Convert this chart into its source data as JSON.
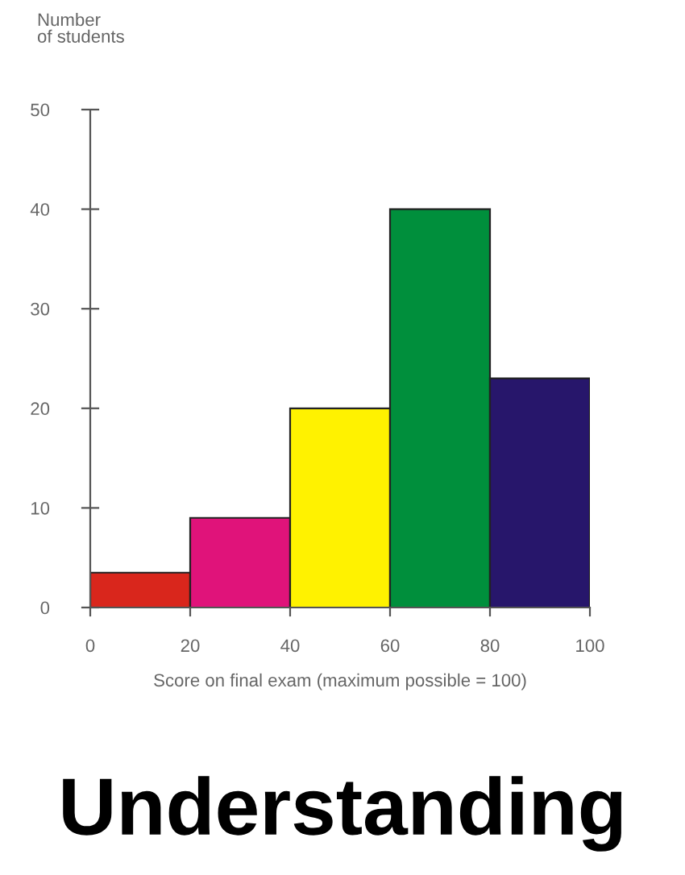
{
  "chart_data": {
    "type": "histogram",
    "ylabel": "Number\nof students",
    "xlabel": "Score on final exam (maximum possible = 100)",
    "bins": [
      0,
      20,
      40,
      60,
      80,
      100
    ],
    "values": [
      3.5,
      9,
      20,
      40,
      23
    ],
    "colors": [
      "#d9261c",
      "#e0137a",
      "#fff200",
      "#008f3c",
      "#27166b"
    ],
    "xlim": [
      0,
      100
    ],
    "xticks": [
      0,
      20,
      40,
      60,
      80,
      100
    ],
    "ylim": [
      0,
      50
    ],
    "yticks": [
      0,
      10,
      20,
      30,
      40,
      50
    ],
    "grid": false,
    "legend": false,
    "annotations": [
      "Understanding"
    ]
  }
}
